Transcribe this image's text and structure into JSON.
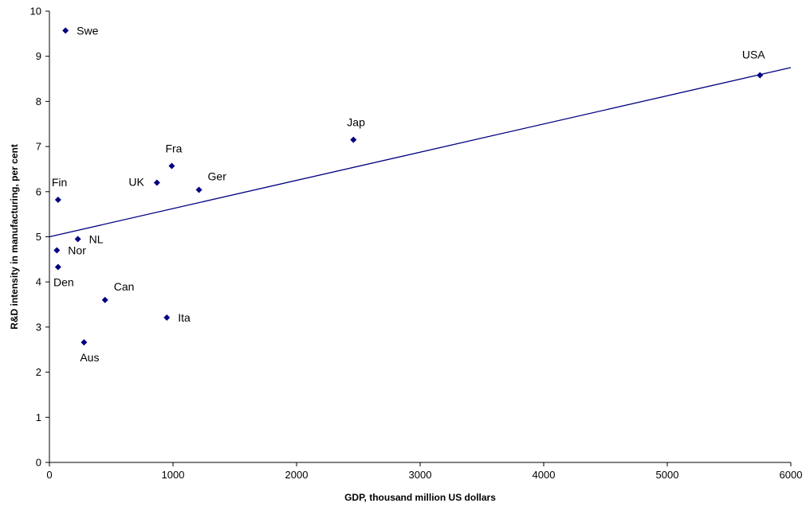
{
  "chart_data": {
    "type": "scatter",
    "title": "",
    "xlabel": "GDP, thousand million US dollars",
    "ylabel": "R&D intensity in manufacturing, per cent",
    "xlim": [
      0,
      6000
    ],
    "ylim": [
      0,
      10
    ],
    "xticks": [
      0,
      1000,
      2000,
      3000,
      4000,
      5000,
      6000
    ],
    "yticks": [
      0,
      1,
      2,
      3,
      4,
      5,
      6,
      7,
      8,
      9,
      10
    ],
    "grid": false,
    "legend": "none",
    "marker_color": "#000080",
    "trendline": {
      "type": "linear",
      "x0": 0,
      "y0": 5.0,
      "x1": 6000,
      "y1": 8.75,
      "color": "#000080"
    },
    "points": [
      {
        "label": "Swe",
        "x": 130,
        "y": 9.57,
        "label_pos": "right"
      },
      {
        "label": "USA",
        "x": 5750,
        "y": 8.58,
        "label_pos": "upper-left"
      },
      {
        "label": "Jap",
        "x": 2460,
        "y": 7.15,
        "label_pos": "above"
      },
      {
        "label": "Fra",
        "x": 990,
        "y": 6.57,
        "label_pos": "above"
      },
      {
        "label": "UK",
        "x": 870,
        "y": 6.2,
        "label_pos": "left"
      },
      {
        "label": "Ger",
        "x": 1210,
        "y": 6.04,
        "label_pos": "upper-right"
      },
      {
        "label": "Fin",
        "x": 70,
        "y": 5.82,
        "label_pos": "above"
      },
      {
        "label": "NL",
        "x": 230,
        "y": 4.95,
        "label_pos": "right"
      },
      {
        "label": "Nor",
        "x": 60,
        "y": 4.7,
        "label_pos": "right"
      },
      {
        "label": "Den",
        "x": 70,
        "y": 4.33,
        "label_pos": "below"
      },
      {
        "label": "Can",
        "x": 450,
        "y": 3.6,
        "label_pos": "upper-right"
      },
      {
        "label": "Ita",
        "x": 950,
        "y": 3.21,
        "label_pos": "right"
      },
      {
        "label": "Aus",
        "x": 280,
        "y": 2.66,
        "label_pos": "below"
      }
    ]
  }
}
